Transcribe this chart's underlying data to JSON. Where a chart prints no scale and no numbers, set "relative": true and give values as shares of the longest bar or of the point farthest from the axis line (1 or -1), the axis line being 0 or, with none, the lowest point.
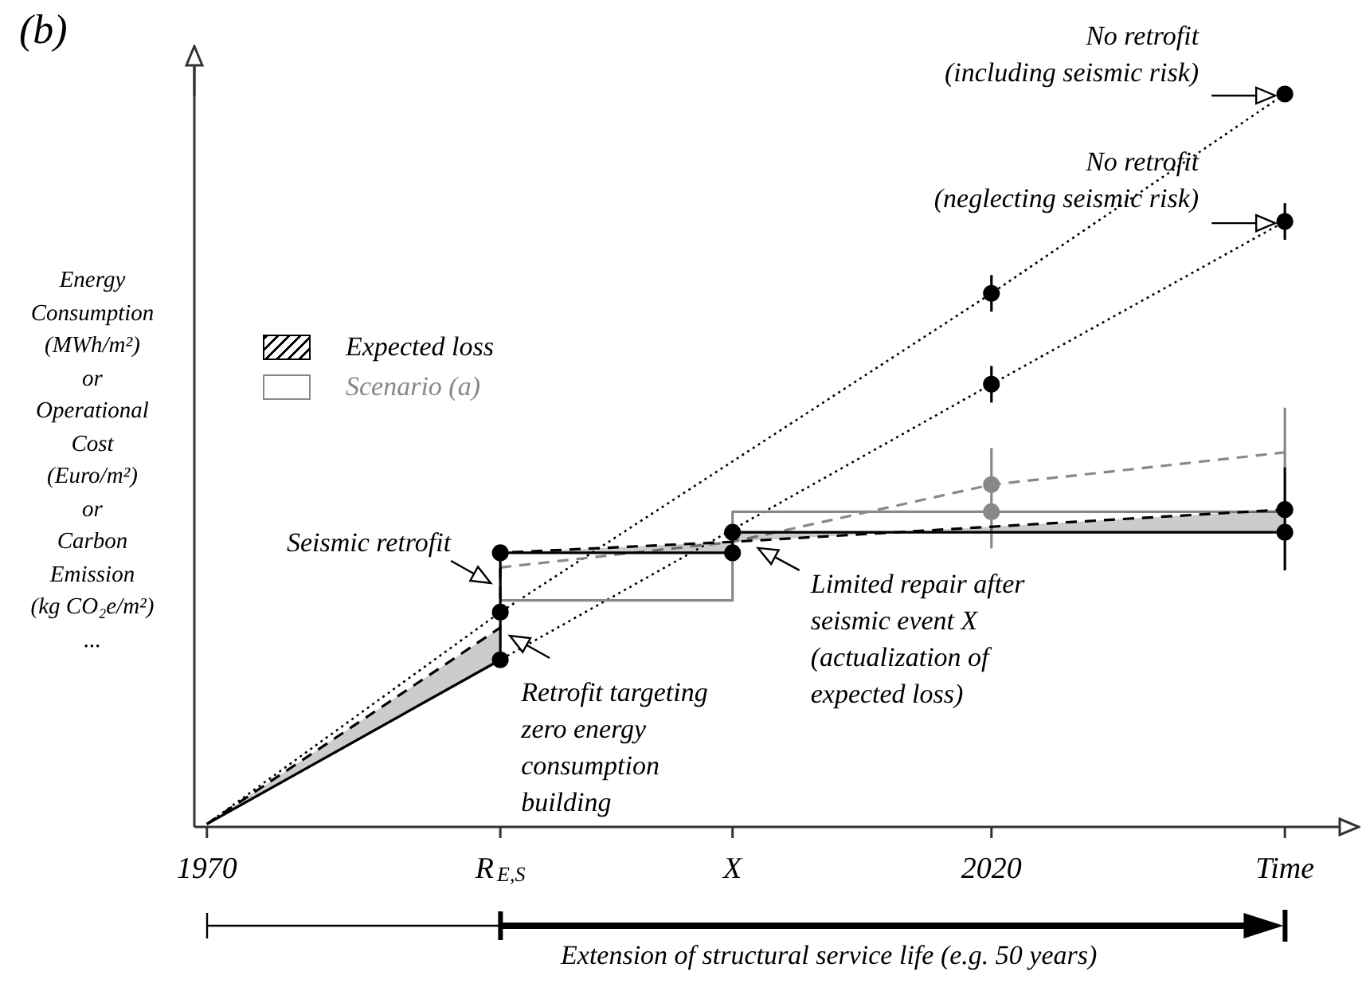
{
  "chart_data": {
    "type": "line",
    "title": "(b)",
    "ylabel": "Energy\nConsumption\n(MWh/m²)\nor\nOperational\nCost\n(Euro/m²)\nor\nCarbon\nEmission\n(kg CO₂e/m²)\n...",
    "relative": true,
    "legend": "left",
    "xlim": [
      1969.2,
      2042.6
    ],
    "xticks": [
      1970,
      {
        "value": 1988.7,
        "label": "R$_{E,S}$"
      },
      {
        "value": 2003.5,
        "label": "X"
      },
      2020,
      {
        "value": 2038.7,
        "label": "Time"
      }
    ],
    "series": [
      {
        "type": "line",
        "color": "#000000",
        "line_style": "solid",
        "x": [
          1970,
          1988.7,
          1988.7,
          2003.5,
          2003.5,
          2038.7
        ],
        "values": [
          0.004,
          0.228,
          0.374,
          0.374,
          0.402,
          0.402
        ]
      },
      {
        "type": "area",
        "name": "Expected loss",
        "color": "#000000",
        "line_style": "dashed",
        "x": [
          1970,
          1988.7,
          1988.7,
          2003.5,
          2038.7
        ],
        "values": [
          0.004,
          0.272,
          0.374,
          0.389,
          0.433
        ]
      },
      {
        "type": "line",
        "name": "Scenario (a)",
        "color": "#888888",
        "line_style": "solid",
        "x": [
          1988.7,
          2003.5,
          2003.5,
          2038.7
        ],
        "values": [
          0.309,
          0.309,
          0.43,
          0.43
        ]
      },
      {
        "type": "line",
        "color": "#888888",
        "line_style": "dashed",
        "x": [
          1988.7,
          2003.5,
          2020,
          2038.7
        ],
        "values": [
          0.354,
          0.389,
          0.467,
          0.511
        ]
      },
      {
        "type": "line",
        "color": "#000000",
        "line_style": "dotted",
        "x": [
          1970,
          1988.7,
          2020,
          2038.7
        ],
        "values": [
          0.004,
          0.293,
          0.728,
          1.0
        ]
      },
      {
        "type": "line",
        "color": "#000000",
        "line_style": "dotted",
        "x": [
          1970,
          1988.7,
          2020,
          2038.7
        ],
        "values": [
          0.004,
          0.228,
          0.604,
          0.826
        ]
      },
      {
        "type": "scatter",
        "color": "#000000",
        "marker": "circle",
        "x": [
          1988.7,
          1988.7,
          1988.7,
          2003.5,
          2003.5,
          2038.7,
          2038.7,
          2038.7,
          2038.7
        ],
        "values": [
          0.228,
          0.293,
          0.374,
          0.374,
          0.402,
          0.402,
          0.433,
          1.0,
          0.826
        ]
      },
      {
        "type": "scatter",
        "color": "#000000",
        "marker": "circle",
        "x": [
          2020,
          2020
        ],
        "values": [
          0.728,
          0.604
        ]
      },
      {
        "type": "scatter",
        "color": "#888888",
        "marker": "circle",
        "x": [
          2020,
          2020
        ],
        "values": [
          0.467,
          0.43
        ]
      },
      {
        "type": "line",
        "color": "#888888",
        "line_style": "solid",
        "x": [
          2020,
          2020
        ],
        "values": [
          0.38,
          0.517
        ]
      },
      {
        "type": "line",
        "color": "#888888",
        "line_style": "solid",
        "x": [
          2038.7,
          2038.7
        ],
        "values": [
          0.491,
          0.572
        ]
      },
      {
        "type": "line",
        "color": "#000000",
        "line_style": "solid",
        "x": [
          2038.7,
          2038.7
        ],
        "values": [
          0.35,
          0.491
        ]
      },
      {
        "type": "line",
        "color": "#000000",
        "line_style": "solid",
        "x": [
          2020,
          2020
        ],
        "values": [
          0.703,
          0.753
        ]
      },
      {
        "type": "line",
        "color": "#000000",
        "line_style": "solid",
        "x": [
          2020,
          2020
        ],
        "values": [
          0.579,
          0.629
        ]
      },
      {
        "type": "line",
        "color": "#000000",
        "line_style": "solid",
        "x": [
          2038.7,
          2038.7
        ],
        "values": [
          0.801,
          0.851
        ]
      }
    ],
    "annotations": [
      {
        "text": "No retrofit\n(including seismic risk)",
        "x": 2038.7,
        "y": 1.0
      },
      {
        "text": "No retrofit\n(neglecting seismic risk)",
        "x": 2038.7,
        "y": 0.826
      },
      {
        "text": "Seismic retrofit",
        "x": 1988.7,
        "y": 0.337
      },
      {
        "text": "Retrofit targeting\nzero energy\nconsumption\nbuilding",
        "x": 1988.7,
        "y": 0.263
      },
      {
        "text": "Limited repair after\nseismic event X\n(actualization of\nexpected loss)",
        "x": 2003.5,
        "y": 0.374
      },
      "Extension of structural service life (e.g. 50 years)"
    ]
  }
}
